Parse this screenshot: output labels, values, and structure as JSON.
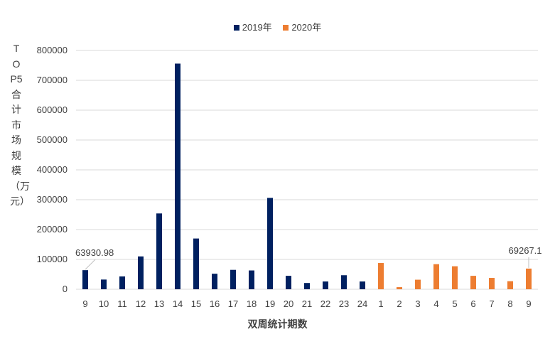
{
  "chart_data": {
    "type": "bar",
    "title": "",
    "xlabel": "双周统计期数",
    "ylabel": "TOP5合计市场规模（万元）",
    "ylim": [
      0,
      800000
    ],
    "yticks": [
      0,
      100000,
      200000,
      300000,
      400000,
      500000,
      600000,
      700000,
      800000
    ],
    "grid": true,
    "legend_position": "top",
    "categories": [
      "9",
      "10",
      "11",
      "12",
      "13",
      "14",
      "15",
      "16",
      "17",
      "18",
      "19",
      "20",
      "21",
      "22",
      "23",
      "24",
      "1",
      "2",
      "3",
      "4",
      "5",
      "6",
      "7",
      "8",
      "9"
    ],
    "series": [
      {
        "name": "2019年",
        "color": "#002060",
        "values": [
          63930.98,
          32500,
          43000,
          110000,
          254000,
          756000,
          170000,
          52000,
          65000,
          63000,
          306000,
          45000,
          21000,
          26000,
          47000,
          26000,
          null,
          null,
          null,
          null,
          null,
          null,
          null,
          null,
          null
        ]
      },
      {
        "name": "2020年",
        "color": "#ED7D31",
        "values": [
          null,
          null,
          null,
          null,
          null,
          null,
          null,
          null,
          null,
          null,
          null,
          null,
          null,
          null,
          null,
          null,
          88000,
          7000,
          32000,
          84000,
          77000,
          45000,
          38000,
          27000,
          69267.1
        ]
      }
    ],
    "data_labels": [
      {
        "category_index": 0,
        "series": "2019年",
        "text": "63930.98"
      },
      {
        "category_index": 24,
        "series": "2020年",
        "text": "69267.1"
      }
    ]
  }
}
